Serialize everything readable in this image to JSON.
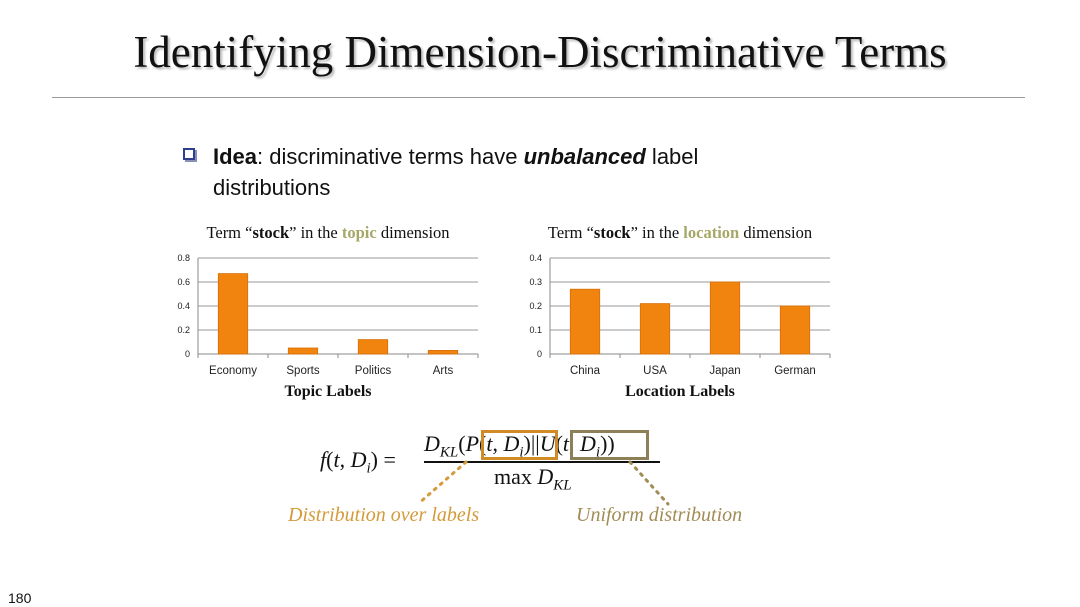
{
  "slide": {
    "title": "Identifying Dimension-Discriminative Terms",
    "page_number": "180"
  },
  "bullet": {
    "label": "Idea",
    "text_1": ": discriminative terms have ",
    "emphasis": "unbalanced",
    "text_2": " label distributions"
  },
  "colors": {
    "bar": "#f0840e",
    "bar_edge": "#d86f06",
    "highlight": "#a5a867",
    "box_p": "#d08a26",
    "box_u": "#8d7f58"
  },
  "chart_data": [
    {
      "type": "bar",
      "title_pre": "Term “",
      "title_term": "stock",
      "title_mid": "” in the ",
      "title_dim": "topic",
      "title_post": " dimension",
      "xlabel": "Topic Labels",
      "categories": [
        "Economy",
        "Sports",
        "Politics",
        "Arts"
      ],
      "values": [
        0.67,
        0.05,
        0.12,
        0.03
      ],
      "ylim": [
        0,
        0.8
      ],
      "yticks": [
        "0",
        "0.2",
        "0.4",
        "0.6",
        "0.8"
      ],
      "grid": true,
      "legend": false
    },
    {
      "type": "bar",
      "title_pre": "Term “",
      "title_term": "stock",
      "title_mid": "” in the ",
      "title_dim": "location",
      "title_post": " dimension",
      "xlabel": "Location Labels",
      "categories": [
        "China",
        "USA",
        "Japan",
        "German"
      ],
      "values": [
        0.27,
        0.21,
        0.3,
        0.2
      ],
      "ylim": [
        0,
        0.4
      ],
      "yticks": [
        "0",
        "0.1",
        "0.2",
        "0.3",
        "0.4"
      ],
      "grid": true,
      "legend": false
    }
  ],
  "formula": {
    "f": "f",
    "t": "t",
    "D": "D",
    "i": "i",
    "eq": " = ",
    "KL": "KL",
    "P": "P",
    "U": "U",
    "sep": "||",
    "max": "max "
  },
  "annotations": {
    "p_label": "Distribution over labels",
    "u_label": "Uniform distribution"
  }
}
